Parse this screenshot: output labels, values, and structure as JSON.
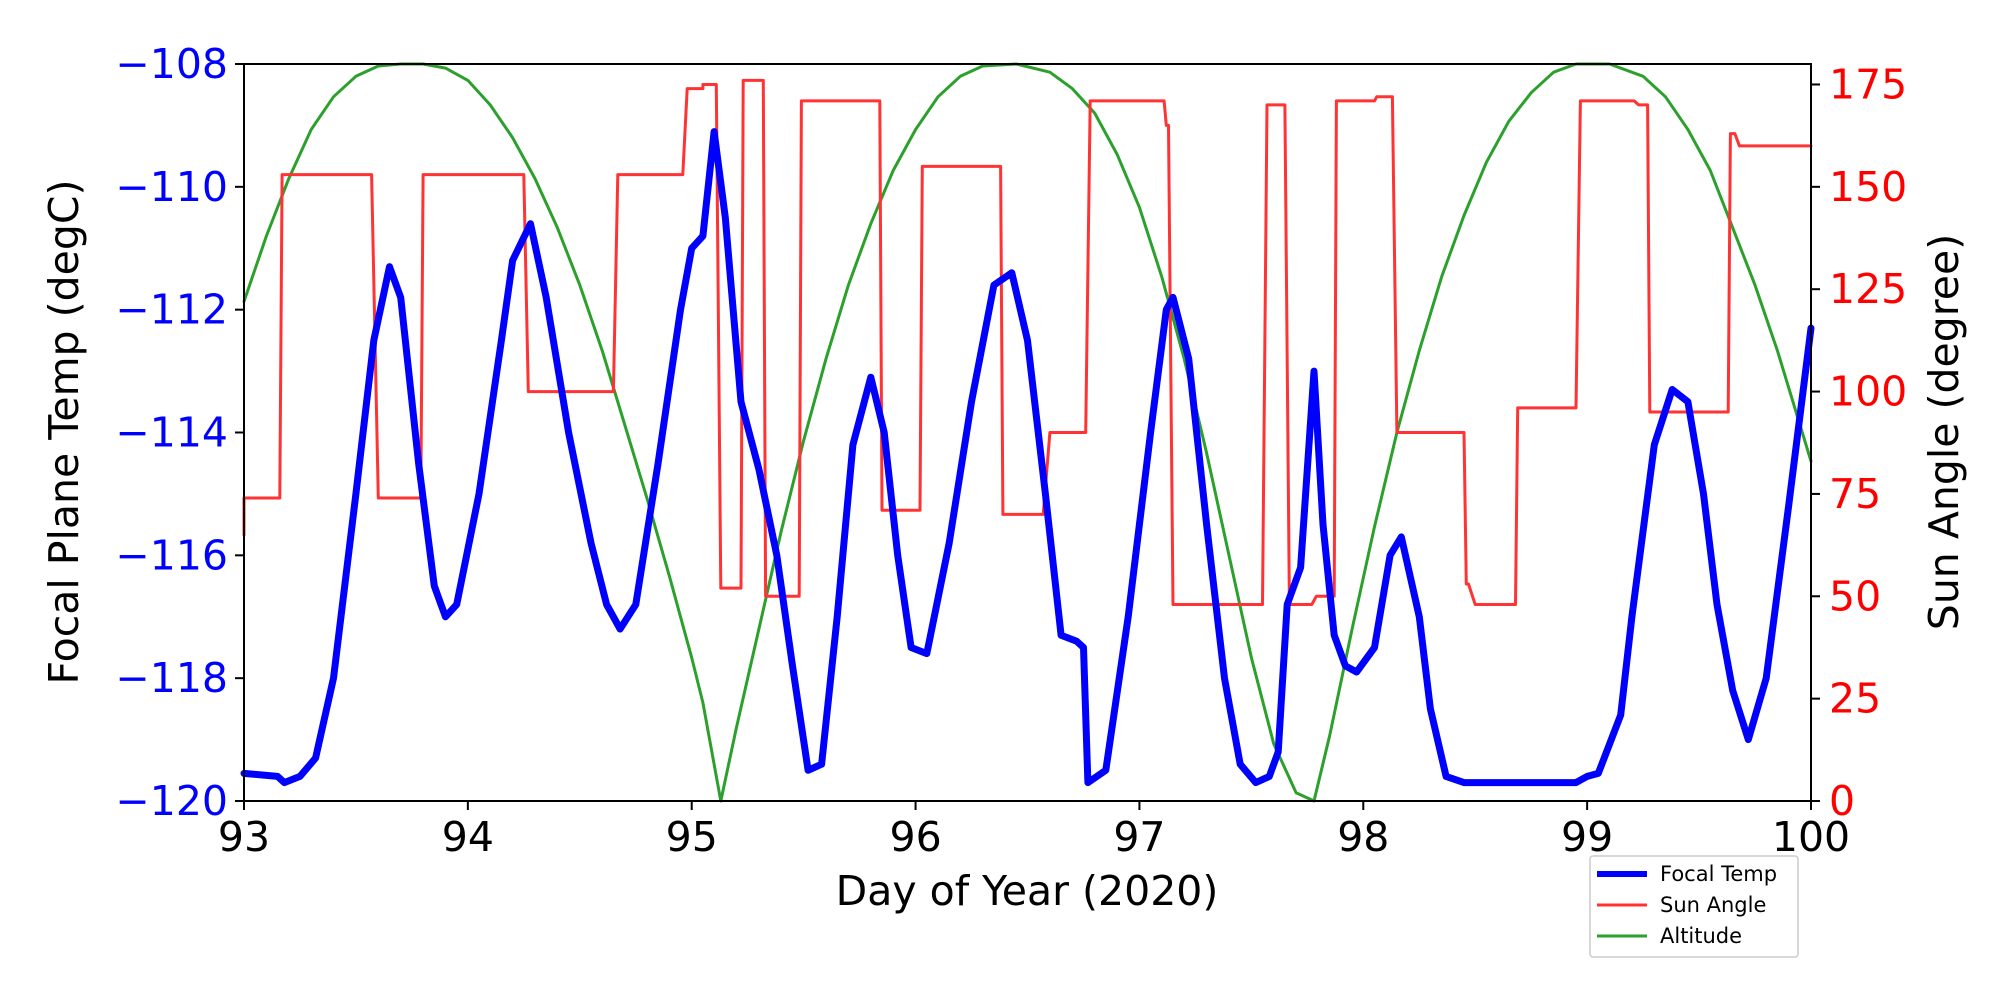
{
  "chart_data": {
    "type": "line",
    "xlabel": "Day of Year (2020)",
    "ylabel_left": "Focal Plane Temp (degC)",
    "ylabel_right": "Sun Angle (degree)",
    "xlim": [
      93,
      100
    ],
    "ylim_left": [
      -120,
      -108
    ],
    "ylim_right": [
      0,
      180
    ],
    "x_ticks": [
      93,
      94,
      95,
      96,
      97,
      98,
      99,
      100
    ],
    "y_left_ticks": [
      -120,
      -118,
      -116,
      -114,
      -112,
      -110,
      -108
    ],
    "y_right_ticks": [
      0,
      25,
      50,
      75,
      100,
      125,
      150,
      175
    ],
    "left_tick_color": "#0000ff",
    "right_tick_color": "#ff0000",
    "legend": {
      "placement": "bottom-right, below plot",
      "entries": [
        "Focal Temp",
        "Sun Angle",
        "Altitude"
      ]
    },
    "series": [
      {
        "name": "Focal Temp",
        "axis": "left",
        "color": "#0000ff",
        "x": [
          93.0,
          93.15,
          93.18,
          93.25,
          93.32,
          93.4,
          93.5,
          93.58,
          93.65,
          93.7,
          93.78,
          93.85,
          93.9,
          93.95,
          94.05,
          94.15,
          94.2,
          94.28,
          94.35,
          94.45,
          94.55,
          94.62,
          94.68,
          94.75,
          94.85,
          94.95,
          95.0,
          95.05,
          95.1,
          95.15,
          95.22,
          95.3,
          95.38,
          95.45,
          95.52,
          95.58,
          95.65,
          95.72,
          95.8,
          95.86,
          95.92,
          95.98,
          96.05,
          96.15,
          96.25,
          96.35,
          96.43,
          96.5,
          96.58,
          96.65,
          96.72,
          96.75,
          96.77,
          96.85,
          96.95,
          97.05,
          97.12,
          97.15,
          97.22,
          97.3,
          97.38,
          97.45,
          97.52,
          97.58,
          97.62,
          97.66,
          97.72,
          97.78,
          97.82,
          97.87,
          97.92,
          97.97,
          98.05,
          98.12,
          98.17,
          98.25,
          98.3,
          98.37,
          98.45,
          98.55,
          98.7,
          98.85,
          98.95,
          99.0,
          99.05,
          99.15,
          99.2,
          99.3,
          99.38,
          99.45,
          99.52,
          99.58,
          99.65,
          99.72,
          99.8,
          99.9,
          100.0
        ],
        "values": [
          -119.55,
          -119.6,
          -119.7,
          -119.6,
          -119.3,
          -118.0,
          -115.0,
          -112.5,
          -111.3,
          -111.8,
          -114.5,
          -116.5,
          -117.0,
          -116.8,
          -115.0,
          -112.5,
          -111.2,
          -110.6,
          -111.8,
          -114.0,
          -115.8,
          -116.8,
          -117.2,
          -116.8,
          -114.5,
          -112.0,
          -111.0,
          -110.8,
          -109.1,
          -110.5,
          -113.5,
          -114.6,
          -116.0,
          -117.8,
          -119.5,
          -119.4,
          -117.0,
          -114.2,
          -113.1,
          -114.0,
          -116.0,
          -117.5,
          -117.6,
          -115.8,
          -113.5,
          -111.6,
          -111.4,
          -112.5,
          -115.0,
          -117.3,
          -117.4,
          -117.5,
          -119.7,
          -119.5,
          -117.0,
          -114.0,
          -112.0,
          -111.8,
          -112.8,
          -115.5,
          -118.0,
          -119.4,
          -119.7,
          -119.6,
          -119.2,
          -116.8,
          -116.2,
          -113.0,
          -115.5,
          -117.3,
          -117.8,
          -117.9,
          -117.5,
          -116.0,
          -115.7,
          -117.0,
          -118.5,
          -119.6,
          -119.7,
          -119.7,
          -119.7,
          -119.7,
          -119.7,
          -119.6,
          -119.55,
          -118.6,
          -117.0,
          -114.2,
          -113.3,
          -113.5,
          -115.0,
          -116.8,
          -118.2,
          -119.0,
          -118.0,
          -115.2,
          -112.3
        ]
      },
      {
        "name": "Sun Angle",
        "axis": "right",
        "color": "#ff3333",
        "x": [
          93.0,
          93.0,
          93.16,
          93.17,
          93.57,
          93.6,
          93.79,
          93.8,
          94.25,
          94.27,
          94.65,
          94.67,
          94.96,
          94.98,
          95.05,
          95.05,
          95.11,
          95.13,
          95.22,
          95.23,
          95.32,
          95.33,
          95.48,
          95.49,
          95.84,
          95.85,
          96.02,
          96.03,
          96.38,
          96.39,
          96.57,
          96.6,
          96.76,
          96.78,
          97.11,
          97.12,
          97.13,
          97.15,
          97.55,
          97.57,
          97.65,
          97.67,
          97.77,
          97.79,
          97.87,
          97.88,
          98.05,
          98.06,
          98.13,
          98.15,
          98.45,
          98.46,
          98.47,
          98.5,
          98.68,
          98.69,
          98.95,
          98.97,
          99.21,
          99.23,
          99.27,
          99.28,
          99.63,
          99.64,
          99.66,
          99.68,
          100.0
        ],
        "values": [
          65,
          74,
          74,
          153,
          153,
          74,
          74,
          153,
          153,
          100,
          100,
          153,
          153,
          174,
          174,
          175,
          175,
          52,
          52,
          176,
          176,
          50,
          50,
          171,
          171,
          71,
          71,
          155,
          155,
          70,
          70,
          90,
          90,
          171,
          171,
          165,
          165,
          48,
          48,
          170,
          170,
          48,
          48,
          50,
          50,
          171,
          171,
          172,
          172,
          90,
          90,
          53,
          53,
          48,
          48,
          96,
          96,
          171,
          171,
          170,
          170,
          95,
          95,
          163,
          163,
          160,
          160
        ]
      },
      {
        "name": "Altitude",
        "axis": "right",
        "color": "#2ca02c",
        "x": [
          93.0,
          93.1,
          93.2,
          93.3,
          93.4,
          93.5,
          93.6,
          93.7,
          93.8,
          93.9,
          94.0,
          94.1,
          94.2,
          94.3,
          94.4,
          94.5,
          94.6,
          94.7,
          94.8,
          94.9,
          95.0,
          95.05,
          95.13,
          95.2,
          95.3,
          95.4,
          95.5,
          95.6,
          95.7,
          95.8,
          95.9,
          96.0,
          96.1,
          96.2,
          96.3,
          96.45,
          96.6,
          96.7,
          96.8,
          96.9,
          97.0,
          97.1,
          97.2,
          97.3,
          97.4,
          97.5,
          97.6,
          97.7,
          97.78,
          97.85,
          97.95,
          98.05,
          98.15,
          98.25,
          98.35,
          98.45,
          98.55,
          98.65,
          98.75,
          98.85,
          98.95,
          99.1,
          99.25,
          99.35,
          99.45,
          99.55,
          99.65,
          99.75,
          99.85,
          99.95,
          100.0
        ],
        "values": [
          122,
          138,
          152,
          164,
          172,
          177,
          179.5,
          180,
          180,
          179,
          176,
          170,
          162,
          152,
          140,
          126,
          110,
          92,
          74,
          55,
          35,
          24,
          0,
          18,
          42,
          66,
          88,
          108,
          126,
          141,
          154,
          164,
          172,
          177,
          179.5,
          180,
          178,
          174,
          168,
          158,
          145,
          128,
          108,
          85,
          60,
          35,
          14,
          2,
          0,
          16,
          42,
          67,
          90,
          110,
          128,
          143,
          156,
          166,
          173,
          178,
          180,
          180,
          177,
          172,
          164,
          154,
          140,
          126,
          110,
          92,
          83
        ]
      }
    ]
  }
}
